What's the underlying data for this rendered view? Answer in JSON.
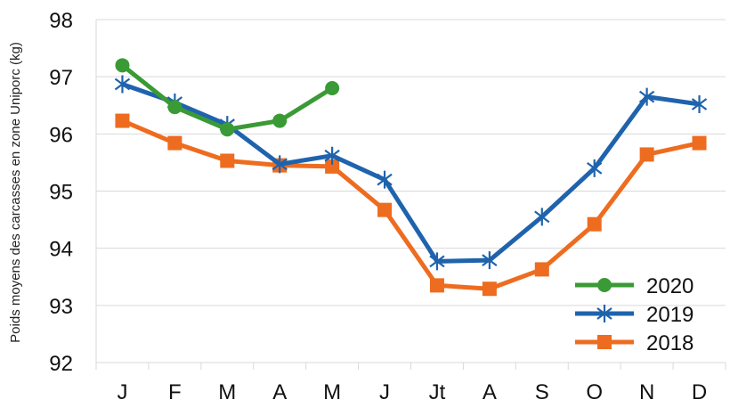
{
  "chart_data": {
    "type": "line",
    "title": "",
    "xlabel": "",
    "ylabel": "Poids moyens des carcasses en zone Uniporc (kg)",
    "categories": [
      "J",
      "F",
      "M",
      "A",
      "M",
      "J",
      "Jt",
      "A",
      "S",
      "O",
      "N",
      "D"
    ],
    "ylim": [
      92,
      98
    ],
    "yticks": [
      92,
      93,
      94,
      95,
      96,
      97,
      98
    ],
    "grid": true,
    "legend": "bottom-right",
    "series": [
      {
        "name": "2020",
        "color": "#3a9a35",
        "marker": "circle",
        "values": [
          97.2,
          96.47,
          96.08,
          96.23,
          96.8,
          null,
          null,
          null,
          null,
          null,
          null,
          null
        ]
      },
      {
        "name": "2019",
        "color": "#1f63ad",
        "marker": "asterisk",
        "values": [
          96.87,
          96.55,
          96.16,
          95.47,
          95.62,
          95.2,
          93.77,
          93.79,
          94.55,
          95.4,
          96.65,
          96.52
        ]
      },
      {
        "name": "2018",
        "color": "#ee6c1f",
        "marker": "square",
        "values": [
          96.23,
          95.84,
          95.53,
          95.45,
          95.43,
          94.67,
          93.35,
          93.29,
          93.63,
          94.42,
          95.64,
          95.84
        ]
      }
    ]
  }
}
